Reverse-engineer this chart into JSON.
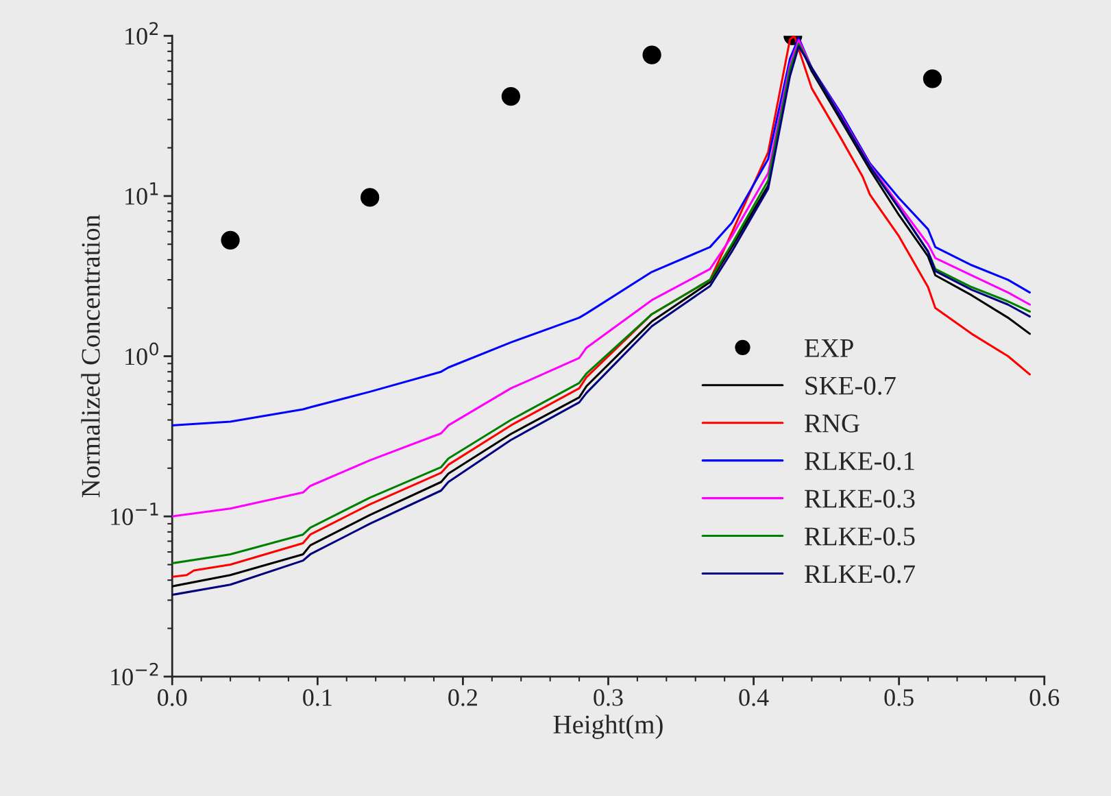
{
  "chart_data": {
    "type": "line",
    "xlabel": "Height(m)",
    "ylabel": "Normalized Concentration",
    "log": "y",
    "grid": false,
    "legend": "bottom right",
    "xlim": [
      0,
      0.6
    ],
    "ylim": [
      0.01,
      100
    ],
    "xticks": [
      {
        "value": 0,
        "label": "0.0"
      },
      {
        "value": 0.1,
        "label": "0.1"
      },
      {
        "value": 0.2,
        "label": "0.2"
      },
      {
        "value": 0.3,
        "label": "0.3"
      },
      {
        "value": 0.4,
        "label": "0.4"
      },
      {
        "value": 0.5,
        "label": "0.5"
      },
      {
        "value": 0.6,
        "label": "0.6"
      }
    ],
    "yticks": [
      {
        "value": 0.01,
        "label": "10$^{−2}$"
      },
      {
        "value": 0.1,
        "label": "10$^{−1}$"
      },
      {
        "value": 1,
        "label": "10$^{0}$"
      },
      {
        "value": 10,
        "label": "10$^{1}$"
      },
      {
        "value": 100,
        "label": "10$^{2}$"
      }
    ],
    "x": [
      0,
      0.04,
      0.09,
      0.095,
      0.136,
      0.185,
      0.19,
      0.233,
      0.28,
      0.285,
      0.33,
      0.37,
      0.385,
      0.41,
      0.425,
      0.431,
      0.44,
      0.46,
      0.48,
      0.5,
      0.52,
      0.525,
      0.55,
      0.575,
      0.59
    ],
    "series": [
      {
        "name": "EXP",
        "type": "scatter",
        "marker": "circle",
        "color": "#000000",
        "x": [
          0.04,
          0.136,
          0.233,
          0.33,
          0.427,
          0.523
        ],
        "values": [
          5.3,
          9.8,
          41.9,
          76,
          100,
          54
        ]
      },
      {
        "name": "SKE-0.7",
        "color": "#000000",
        "values": [
          0.0366,
          0.043,
          0.058,
          0.066,
          0.102,
          0.164,
          0.185,
          0.327,
          0.553,
          0.65,
          1.65,
          2.9,
          4.8,
          11.6,
          60,
          91,
          60,
          29.7,
          14.6,
          7.6,
          4.2,
          3.2,
          2.4,
          1.74,
          1.38
        ]
      },
      {
        "name": "RNG",
        "color": "#ff0000",
        "x": [
          0,
          0.01,
          0.015,
          0.04,
          0.09,
          0.095,
          0.136,
          0.185,
          0.19,
          0.233,
          0.28,
          0.285,
          0.33,
          0.37,
          0.385,
          0.41,
          0.425,
          0.428,
          0.44,
          0.46,
          0.475,
          0.48,
          0.5,
          0.52,
          0.525,
          0.55,
          0.575,
          0.59
        ],
        "values": [
          0.042,
          0.043,
          0.046,
          0.05,
          0.068,
          0.077,
          0.119,
          0.187,
          0.21,
          0.37,
          0.63,
          0.74,
          1.83,
          3.0,
          5.9,
          18.8,
          95,
          100,
          47,
          23,
          13.2,
          10.2,
          5.6,
          2.7,
          2.0,
          1.38,
          1.0,
          0.77
        ]
      },
      {
        "name": "RLKE-0.1",
        "color": "#0000ff",
        "values": [
          0.37,
          0.39,
          0.466,
          0.48,
          0.6,
          0.8,
          0.85,
          1.22,
          1.74,
          1.85,
          3.36,
          4.8,
          6.8,
          17,
          72,
          97,
          63,
          33,
          16,
          9.7,
          6.2,
          4.8,
          3.7,
          3.0,
          2.5
        ]
      },
      {
        "name": "RLKE-0.3",
        "color": "#ff00ff",
        "values": [
          0.1,
          0.112,
          0.141,
          0.155,
          0.224,
          0.33,
          0.37,
          0.63,
          0.975,
          1.13,
          2.24,
          3.5,
          5.6,
          13.9,
          66,
          94,
          63,
          31.8,
          15.6,
          8.8,
          5.0,
          4.1,
          3.2,
          2.5,
          2.1
        ]
      },
      {
        "name": "RLKE-0.5",
        "color": "#008000",
        "values": [
          0.051,
          0.058,
          0.077,
          0.085,
          0.131,
          0.203,
          0.23,
          0.4,
          0.68,
          0.78,
          1.83,
          3.0,
          5.0,
          12.5,
          62,
          89,
          63,
          31,
          15.3,
          8.4,
          4.5,
          3.5,
          2.7,
          2.2,
          1.9
        ]
      },
      {
        "name": "RLKE-0.7",
        "color": "#000080",
        "values": [
          0.0324,
          0.0375,
          0.053,
          0.058,
          0.09,
          0.145,
          0.164,
          0.3,
          0.515,
          0.59,
          1.54,
          2.74,
          4.5,
          11.1,
          56,
          86,
          63,
          31,
          15.3,
          8.4,
          4.5,
          3.4,
          2.6,
          2.1,
          1.77
        ]
      }
    ]
  }
}
